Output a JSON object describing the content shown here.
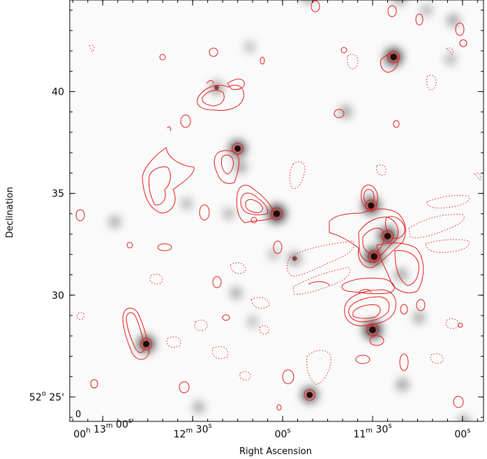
{
  "chart_data": {
    "type": "contour",
    "xlabel": "Right Ascension",
    "ylabel": "Declination",
    "panel_label": "0",
    "x_ticks": [
      {
        "h": "00",
        "h_unit": "h",
        "m": "13",
        "m_unit": "m",
        "s": "00",
        "s_unit": "s",
        "ra_sec": 780
      },
      {
        "m": "12",
        "m_unit": "m",
        "s": "30",
        "s_unit": "s",
        "ra_sec": 750
      },
      {
        "s": "00",
        "s_unit": "s",
        "ra_sec": 720
      },
      {
        "m": "11",
        "m_unit": "m",
        "s": "30",
        "s_unit": "s",
        "ra_sec": 690
      },
      {
        "s": "00",
        "s_unit": "s",
        "ra_sec": 660
      }
    ],
    "y_ticks": [
      {
        "deg": "52",
        "deg_unit": "o",
        "min": "25'",
        "dec_arcmin": 25
      },
      {
        "min": "30",
        "dec_arcmin": 30
      },
      {
        "min": "35",
        "dec_arcmin": 35
      },
      {
        "min": "40",
        "dec_arcmin": 40
      }
    ],
    "xlim_ra_sec": [
      791,
      653
    ],
    "ylim_dec_arcmin": [
      23.8,
      44.5
    ],
    "contour_color": "#e31a1c",
    "negative_contours": "dotted",
    "sources": [
      {
        "ra": 778,
        "dec": 23.6
      },
      {
        "ra": 765.5,
        "dec": 27.6,
        "peak": 0.9
      },
      {
        "ra": 742,
        "dec": 40.2,
        "peak": 0.5
      },
      {
        "ra": 752,
        "dec": 34.5,
        "peak": 0.35
      },
      {
        "ra": 735,
        "dec": 37.2,
        "peak": 0.85
      },
      {
        "ra": 734,
        "dec": 36.3,
        "peak": 0.45
      },
      {
        "ra": 722,
        "dec": 34.0,
        "peak": 1.0
      },
      {
        "ra": 716,
        "dec": 31.8,
        "peak": 0.5
      },
      {
        "ra": 711,
        "dec": 25.1,
        "peak": 0.8
      },
      {
        "ra": 735.5,
        "dec": 30.1,
        "peak": 0.4
      },
      {
        "ra": 690,
        "dec": 28.3,
        "peak": 1.0
      },
      {
        "ra": 690.5,
        "dec": 34.4,
        "peak": 0.9
      },
      {
        "ra": 689.5,
        "dec": 31.9,
        "peak": 1.0
      },
      {
        "ra": 685,
        "dec": 32.9,
        "peak": 0.95
      },
      {
        "ra": 680.5,
        "dec": 31.0,
        "peak": 0.45
      },
      {
        "ra": 683,
        "dec": 41.7,
        "peak": 0.95
      },
      {
        "ra": 699,
        "dec": 39.0,
        "peak": 0.45
      },
      {
        "ra": 776,
        "dec": 33.6,
        "peak": 0.4
      },
      {
        "ra": 748,
        "dec": 24.5,
        "peak": 0.4
      },
      {
        "ra": 659.5,
        "dec": 23.8,
        "peak": 0.4
      },
      {
        "ra": 680,
        "dec": 25.6,
        "peak": 0.45
      },
      {
        "ra": 674.5,
        "dec": 28.9,
        "peak": 0.4
      },
      {
        "ra": 663,
        "dec": 43.5,
        "peak": 0.45
      },
      {
        "ra": 664,
        "dec": 41.6,
        "peak": 0.35
      },
      {
        "ra": 681,
        "dec": 44.6,
        "peak": 0.5
      },
      {
        "ra": 711.5,
        "dec": 44.7,
        "peak": 0.55
      },
      {
        "ra": 672,
        "dec": 44.0,
        "peak": 0.35
      },
      {
        "ra": 738,
        "dec": 34.0,
        "peak": 0.35
      },
      {
        "ra": 731,
        "dec": 42.2,
        "peak": 0.3
      },
      {
        "ra": 723,
        "dec": 32.0,
        "peak": 0.3
      },
      {
        "ra": 730,
        "dec": 28.7,
        "peak": 0.3
      }
    ]
  }
}
